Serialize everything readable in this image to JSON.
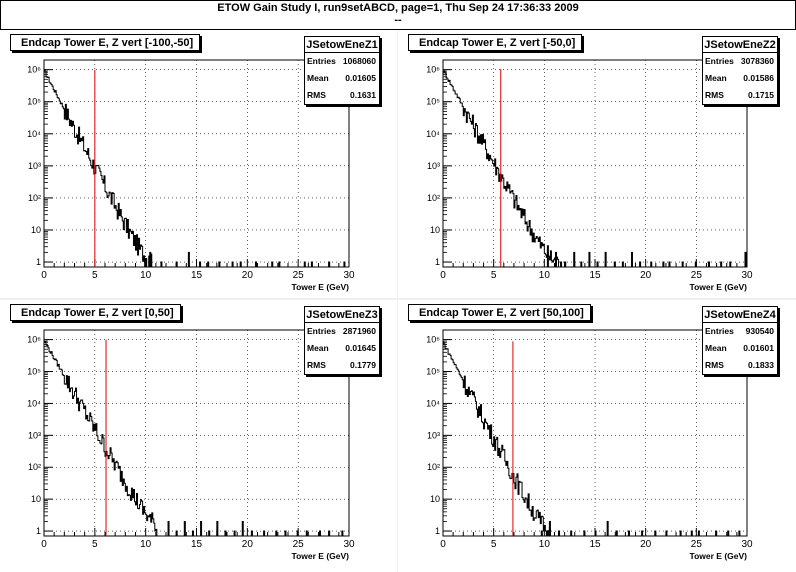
{
  "header": {
    "title": "ETOW Gain Study I, run9setABCD, page=1,  Thu Sep 24 17:36:33 2009",
    "subtitle": "--"
  },
  "colors": {
    "histogram": "#000000",
    "marker": "#e00000",
    "grid": "#000000"
  },
  "chart_data": [
    {
      "type": "histogram",
      "title": "Endcap Tower E, Z vert [-100,-50]",
      "stats": {
        "name": "JSetowEneZ1",
        "entries": "1068060",
        "mean": "0.01605",
        "rms": "0.1631"
      },
      "xlabel": "Tower E (GeV)",
      "xlim": [
        0,
        30
      ],
      "ylim": [
        0.7,
        2000000
      ],
      "yscale": "log",
      "grid": true,
      "x_ticks": [
        0,
        5,
        10,
        15,
        20,
        25,
        30
      ],
      "y_tick_exponents": [
        0,
        1,
        2,
        3,
        4,
        5,
        6
      ],
      "y_ticks_labels": [
        "1",
        "10",
        "10²",
        "10³",
        "10⁴",
        "10⁵",
        "10⁶"
      ],
      "marker_x": 5.0,
      "peak": 900000,
      "decay_scale": 0.72,
      "tail_floor": 3.0,
      "tail_end": 17,
      "bins": [
        [
          10.4,
          2
        ],
        [
          11.5,
          1
        ],
        [
          13.0,
          1
        ],
        [
          14.2,
          2
        ],
        [
          15.3,
          1
        ],
        [
          16.1,
          1
        ],
        [
          17.2,
          1
        ],
        [
          18.5,
          1
        ],
        [
          19.3,
          1
        ],
        [
          20.8,
          1
        ],
        [
          22.4,
          1
        ],
        [
          23.1,
          1
        ],
        [
          25.6,
          1
        ],
        [
          26.3,
          1
        ],
        [
          28.0,
          1
        ],
        [
          29.5,
          1
        ]
      ]
    },
    {
      "type": "histogram",
      "title": "Endcap Tower E, Z vert [-50,0]",
      "stats": {
        "name": "JSetowEneZ2",
        "entries": "3078360",
        "mean": "0.01586",
        "rms": "0.1715"
      },
      "xlabel": "Tower E (GeV)",
      "xlim": [
        0,
        30
      ],
      "ylim": [
        0.7,
        2000000
      ],
      "yscale": "log",
      "grid": true,
      "x_ticks": [
        0,
        5,
        10,
        15,
        20,
        25,
        30
      ],
      "y_tick_exponents": [
        0,
        1,
        2,
        3,
        4,
        5,
        6
      ],
      "y_ticks_labels": [
        "1",
        "10",
        "10²",
        "10³",
        "10⁴",
        "10⁵",
        "10⁶"
      ],
      "marker_x": 5.7,
      "peak": 950000,
      "decay_scale": 0.75,
      "tail_floor": 4.0,
      "tail_end": 20,
      "bins": [
        [
          10.3,
          2
        ],
        [
          11.1,
          2
        ],
        [
          12.0,
          1
        ],
        [
          12.9,
          2
        ],
        [
          13.6,
          1
        ],
        [
          14.4,
          2
        ],
        [
          15.2,
          1
        ],
        [
          16.0,
          2
        ],
        [
          16.9,
          1
        ],
        [
          17.7,
          1
        ],
        [
          18.6,
          2
        ],
        [
          19.4,
          1
        ],
        [
          20.5,
          1
        ],
        [
          21.7,
          1
        ],
        [
          22.3,
          1
        ],
        [
          23.6,
          1
        ],
        [
          24.9,
          1
        ],
        [
          26.2,
          1
        ],
        [
          27.4,
          1
        ],
        [
          28.3,
          1
        ],
        [
          29.8,
          2
        ]
      ]
    },
    {
      "type": "histogram",
      "title": "Endcap Tower E, Z vert [0,50]",
      "stats": {
        "name": "JSetowEneZ3",
        "entries": "2871960",
        "mean": "0.01645",
        "rms": "0.1779"
      },
      "xlabel": "Tower E (GeV)",
      "xlim": [
        0,
        30
      ],
      "ylim": [
        0.7,
        2000000
      ],
      "yscale": "log",
      "grid": true,
      "x_ticks": [
        0,
        5,
        10,
        15,
        20,
        25,
        30
      ],
      "y_tick_exponents": [
        0,
        1,
        2,
        3,
        4,
        5,
        6
      ],
      "y_ticks_labels": [
        "1",
        "10",
        "10²",
        "10³",
        "10⁴",
        "10⁵",
        "10⁶"
      ],
      "marker_x": 6.1,
      "peak": 900000,
      "decay_scale": 0.78,
      "tail_floor": 5.0,
      "tail_end": 18,
      "bins": [
        [
          12.2,
          2
        ],
        [
          13.0,
          1
        ],
        [
          13.8,
          2
        ],
        [
          14.6,
          1
        ],
        [
          15.4,
          2
        ],
        [
          16.2,
          1
        ],
        [
          17.0,
          2
        ],
        [
          17.8,
          1
        ],
        [
          18.7,
          1
        ],
        [
          19.5,
          2
        ],
        [
          20.4,
          1
        ],
        [
          21.6,
          1
        ],
        [
          22.8,
          1
        ],
        [
          23.7,
          1
        ],
        [
          24.9,
          1
        ],
        [
          25.8,
          1
        ],
        [
          27.1,
          1
        ],
        [
          28.0,
          1
        ],
        [
          29.3,
          1
        ]
      ]
    },
    {
      "type": "histogram",
      "title": "Endcap Tower E, Z vert [50,100]",
      "stats": {
        "name": "JSetowEneZ4",
        "entries": "930540",
        "mean": "0.01601",
        "rms": "0.1833"
      },
      "xlabel": "Tower E (GeV)",
      "xlim": [
        0,
        30
      ],
      "ylim": [
        0.7,
        2000000
      ],
      "yscale": "log",
      "grid": true,
      "x_ticks": [
        0,
        5,
        10,
        15,
        20,
        25,
        30
      ],
      "y_tick_exponents": [
        0,
        1,
        2,
        3,
        4,
        5,
        6
      ],
      "y_ticks_labels": [
        "1",
        "10",
        "10²",
        "10³",
        "10⁴",
        "10⁵",
        "10⁶"
      ],
      "marker_x": 6.9,
      "peak": 800000,
      "decay_scale": 0.72,
      "tail_floor": 3.0,
      "tail_end": 17,
      "bins": [
        [
          9.7,
          1
        ],
        [
          10.5,
          2
        ],
        [
          11.4,
          1
        ],
        [
          12.6,
          1
        ],
        [
          13.9,
          1
        ],
        [
          15.0,
          1
        ],
        [
          16.2,
          2
        ],
        [
          17.1,
          1
        ],
        [
          18.3,
          1
        ],
        [
          19.6,
          1
        ],
        [
          20.9,
          1
        ],
        [
          22.0,
          1
        ],
        [
          23.4,
          1
        ],
        [
          24.5,
          1
        ],
        [
          25.2,
          1
        ],
        [
          26.9,
          1
        ],
        [
          28.1,
          1
        ],
        [
          29.2,
          1
        ]
      ]
    }
  ]
}
